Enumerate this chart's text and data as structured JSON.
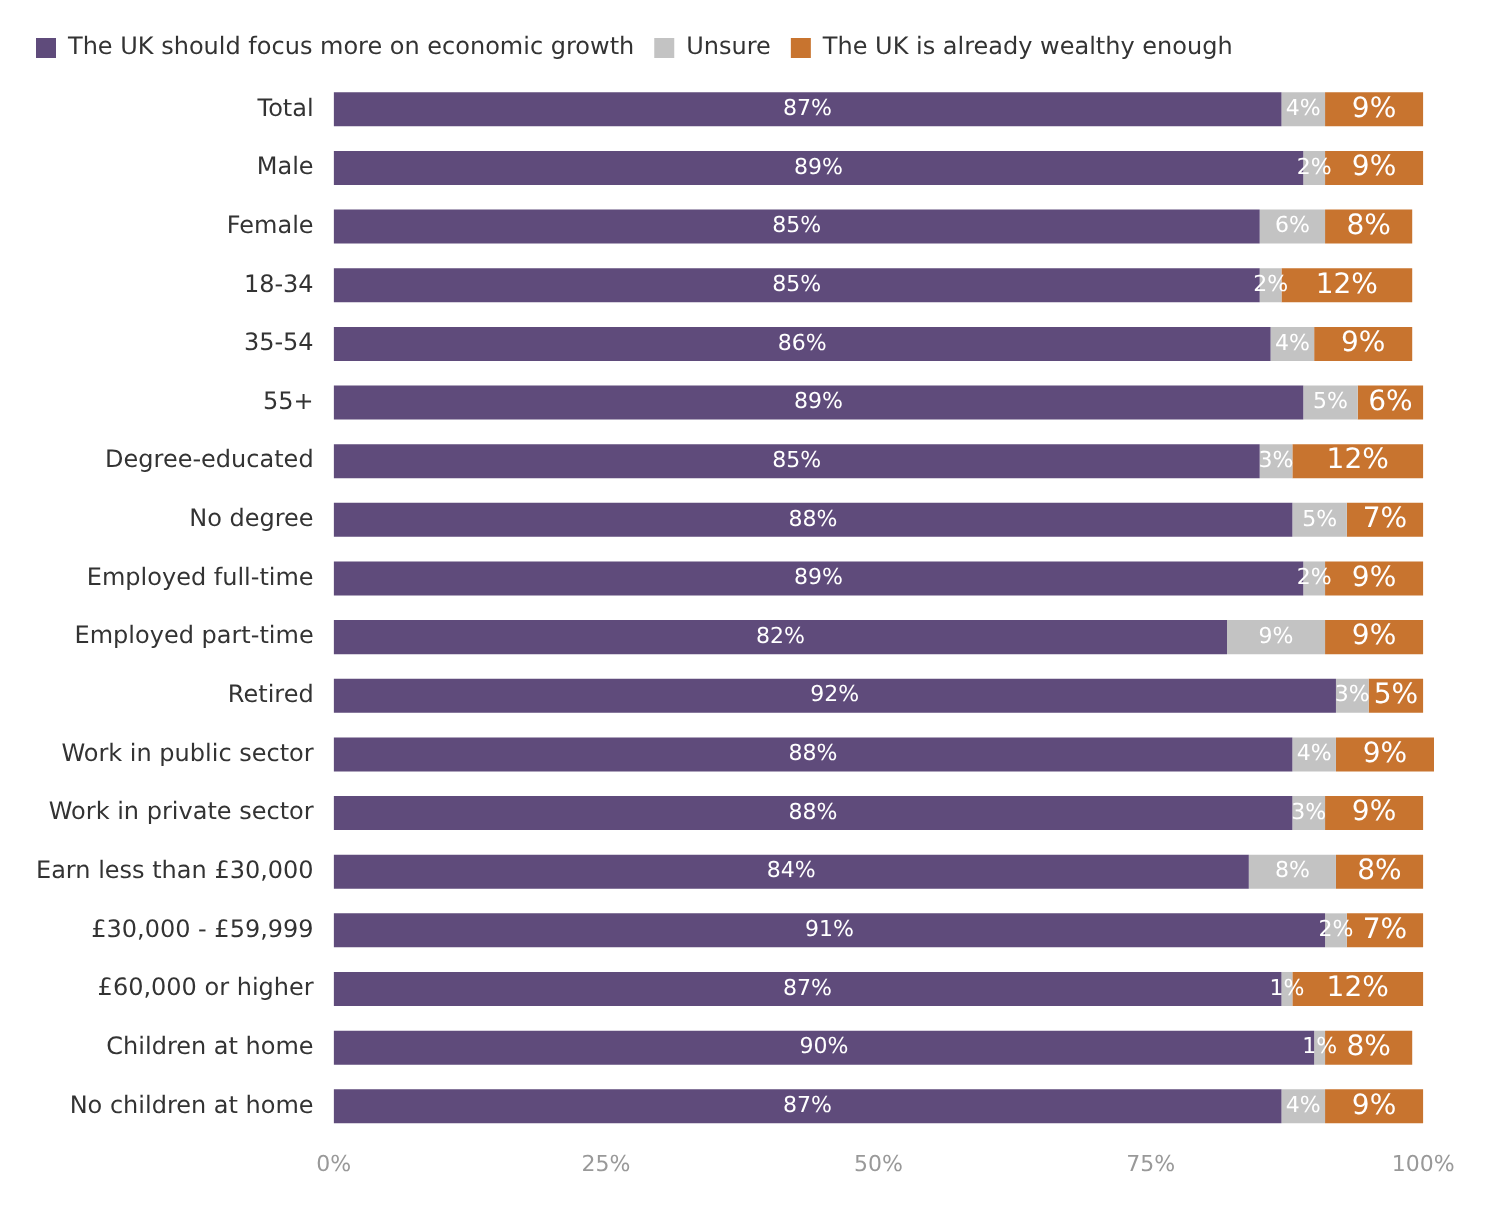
{
  "chart_data": {
    "type": "bar",
    "orientation": "horizontal",
    "stacked": true,
    "categories": [
      "Total",
      "Male",
      "Female",
      "18-34",
      "35-54",
      "55+",
      "Degree-educated",
      "No degree",
      "Employed full-time",
      "Employed part-time",
      "Retired",
      "Work in public sector",
      "Work in private sector",
      "Earn less than £30,000",
      "£30,000 - £59,999",
      "£60,000 or higher",
      "Children at home",
      "No children at home"
    ],
    "series": [
      {
        "name": "The UK should focus more on economic growth",
        "color": "#5f4b7b",
        "values": [
          87,
          89,
          85,
          85,
          86,
          89,
          85,
          88,
          89,
          82,
          92,
          88,
          88,
          84,
          91,
          87,
          90,
          87
        ],
        "value_labels": [
          "87%",
          "89%",
          "85%",
          "85%",
          "86%",
          "89%",
          "85%",
          "88%",
          "89%",
          "82%",
          "92%",
          "88%",
          "88%",
          "84%",
          "91%",
          "87%",
          "90%",
          "87%"
        ]
      },
      {
        "name": "Unsure",
        "color": "#c3c3c3",
        "values": [
          4,
          2,
          6,
          2,
          4,
          5,
          3,
          5,
          2,
          9,
          3,
          4,
          3,
          8,
          2,
          1,
          1,
          4
        ],
        "value_labels": [
          "4%",
          "2%",
          "6%",
          "2%",
          "4%",
          "5%",
          "3%",
          "5%",
          "2%",
          "9%",
          "3%",
          "4%",
          "3%",
          "8%",
          "2%",
          "1%",
          "1%",
          "4%"
        ]
      },
      {
        "name": "The UK is already wealthy enough",
        "color": "#c8742f",
        "values": [
          9,
          9,
          8,
          12,
          9,
          6,
          12,
          7,
          9,
          9,
          5,
          9,
          9,
          8,
          7,
          12,
          8,
          9
        ],
        "value_labels": [
          "9%",
          "9%",
          "8%",
          "12%",
          "9%",
          "6%",
          "12%",
          "7%",
          "9%",
          "9%",
          "5%",
          "9%",
          "9%",
          "8%",
          "7%",
          "12%",
          "8%",
          "9%"
        ]
      }
    ],
    "xlim": [
      0,
      101
    ],
    "xticks": [
      {
        "value": 0,
        "label": "0%"
      },
      {
        "value": 25,
        "label": "25%"
      },
      {
        "value": 50,
        "label": "50%"
      },
      {
        "value": 75,
        "label": "75%"
      },
      {
        "value": 100,
        "label": "100%"
      }
    ],
    "grid": false,
    "legend": "top left"
  }
}
